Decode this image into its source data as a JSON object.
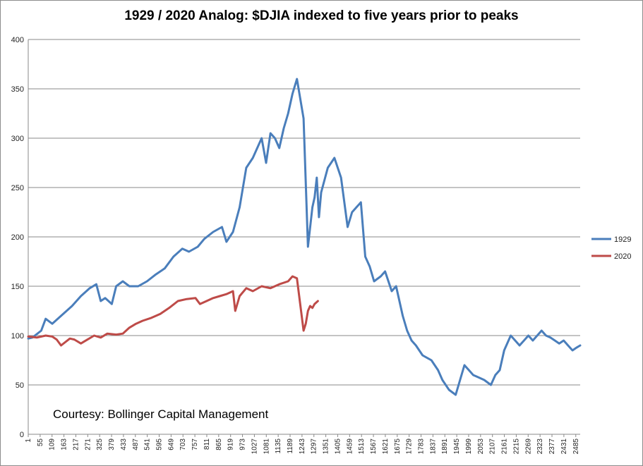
{
  "chart_data": {
    "type": "line",
    "title": "1929 / 2020 Analog: $DJIA indexed to five years prior to peaks",
    "xlabel": "",
    "ylabel": "",
    "xlim": [
      1,
      2505
    ],
    "ylim": [
      0,
      400
    ],
    "yticks": [
      0,
      50,
      100,
      150,
      200,
      250,
      300,
      350,
      400
    ],
    "xticks": [
      1,
      55,
      109,
      163,
      217,
      271,
      325,
      379,
      433,
      487,
      541,
      595,
      649,
      703,
      757,
      811,
      865,
      919,
      973,
      1027,
      1081,
      1135,
      1189,
      1243,
      1297,
      1351,
      1405,
      1459,
      1513,
      1567,
      1621,
      1675,
      1729,
      1783,
      1837,
      1891,
      1945,
      1999,
      2053,
      2107,
      2161,
      2215,
      2269,
      2323,
      2377,
      2431,
      2485
    ],
    "grid": "horizontal",
    "legend_position": "right",
    "annotation": "Courtesy:  Bollinger Capital Management",
    "series": [
      {
        "name": "1929",
        "color": "#4a7ebb",
        "x": [
          1,
          20,
          60,
          80,
          110,
          150,
          200,
          240,
          280,
          310,
          330,
          350,
          380,
          400,
          430,
          460,
          500,
          540,
          580,
          620,
          660,
          700,
          730,
          770,
          800,
          840,
          880,
          900,
          930,
          960,
          990,
          1020,
          1060,
          1080,
          1100,
          1120,
          1140,
          1160,
          1180,
          1200,
          1220,
          1250,
          1270,
          1290,
          1300,
          1310,
          1320,
          1330,
          1360,
          1390,
          1420,
          1450,
          1470,
          1490,
          1510,
          1530,
          1550,
          1570,
          1600,
          1620,
          1650,
          1670,
          1700,
          1720,
          1740,
          1760,
          1790,
          1830,
          1860,
          1880,
          1910,
          1940,
          1960,
          1980,
          2000,
          2020,
          2040,
          2070,
          2100,
          2120,
          2140,
          2160,
          2190,
          2210,
          2230,
          2250,
          2270,
          2290,
          2310,
          2330,
          2350,
          2370,
          2390,
          2410,
          2430,
          2450,
          2470,
          2490,
          2505
        ],
        "values": [
          97,
          98,
          105,
          117,
          112,
          120,
          130,
          140,
          148,
          152,
          135,
          138,
          132,
          150,
          155,
          150,
          150,
          155,
          162,
          168,
          180,
          188,
          185,
          190,
          198,
          205,
          210,
          195,
          205,
          230,
          270,
          280,
          300,
          275,
          305,
          300,
          290,
          310,
          325,
          345,
          360,
          320,
          190,
          230,
          240,
          260,
          220,
          245,
          270,
          280,
          260,
          210,
          225,
          230,
          235,
          180,
          170,
          155,
          160,
          165,
          145,
          150,
          120,
          105,
          95,
          90,
          80,
          75,
          65,
          55,
          45,
          40,
          55,
          70,
          65,
          60,
          58,
          55,
          50,
          60,
          65,
          85,
          100,
          95,
          90,
          95,
          100,
          95,
          100,
          105,
          100,
          98,
          95,
          92,
          95,
          90,
          85,
          88,
          90
        ]
      },
      {
        "name": "2020",
        "color": "#be4b48",
        "x": [
          1,
          40,
          80,
          110,
          130,
          150,
          190,
          210,
          240,
          270,
          300,
          330,
          360,
          400,
          430,
          460,
          490,
          520,
          560,
          600,
          640,
          680,
          720,
          760,
          780,
          810,
          840,
          870,
          900,
          930,
          940,
          960,
          990,
          1020,
          1060,
          1100,
          1140,
          1180,
          1200,
          1220,
          1250,
          1260,
          1270,
          1280,
          1290,
          1300,
          1315
        ],
        "values": [
          99,
          98,
          100,
          99,
          96,
          90,
          97,
          96,
          92,
          96,
          100,
          98,
          102,
          101,
          102,
          108,
          112,
          115,
          118,
          122,
          128,
          135,
          137,
          138,
          132,
          135,
          138,
          140,
          142,
          145,
          125,
          140,
          148,
          145,
          150,
          148,
          152,
          155,
          160,
          158,
          105,
          112,
          125,
          130,
          128,
          132,
          135
        ]
      }
    ]
  }
}
